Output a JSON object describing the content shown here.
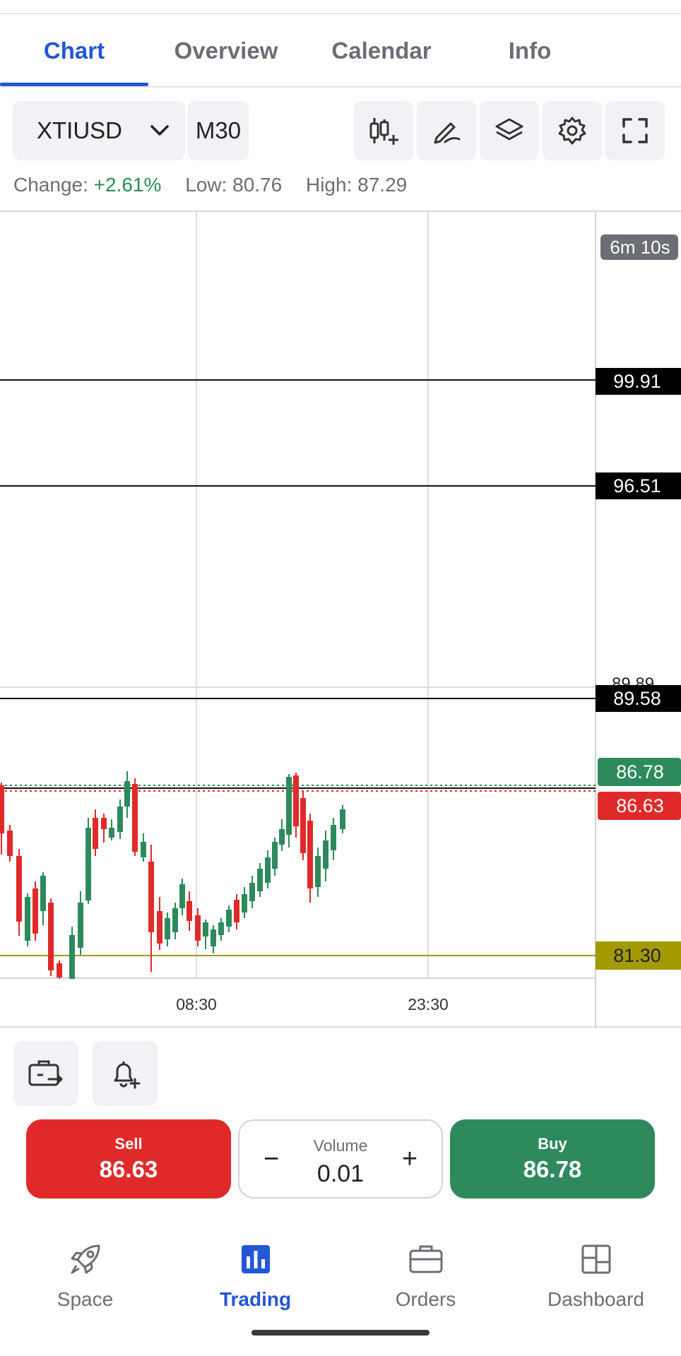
{
  "tabs": [
    {
      "label": "Chart",
      "active": true
    },
    {
      "label": "Overview",
      "active": false
    },
    {
      "label": "Calendar",
      "active": false
    },
    {
      "label": "Info",
      "active": false
    }
  ],
  "toolbar": {
    "symbol": "XTIUSD",
    "timeframe": "M30",
    "tools": [
      "indicators-icon",
      "draw-icon",
      "layers-icon",
      "settings-icon",
      "fullscreen-icon"
    ]
  },
  "stats": {
    "change_label": "Change:",
    "change_value": "+2.61%",
    "low_label": "Low:",
    "low_value": "80.76",
    "high_label": "High:",
    "high_value": "87.29"
  },
  "chart": {
    "timer": "6m 10s",
    "levels": [
      {
        "value": "99.91",
        "color": "#000000"
      },
      {
        "value": "96.51",
        "color": "#000000"
      },
      {
        "value": "89.58",
        "color": "#000000"
      },
      {
        "value": "86.78",
        "color": "#2e8a5c"
      },
      {
        "value": "86.63",
        "color": "#e02a2a"
      },
      {
        "value": "81.30",
        "color": "#a39a00"
      }
    ],
    "time_labels": [
      "08:30",
      "23:30"
    ]
  },
  "actions": {
    "sell_label": "Sell",
    "sell_price": "86.63",
    "volume_label": "Volume",
    "volume_value": "0.01",
    "minus": "−",
    "plus": "+",
    "buy_label": "Buy",
    "buy_price": "86.78"
  },
  "nav": [
    {
      "label": "Space",
      "icon": "rocket-icon",
      "active": false
    },
    {
      "label": "Trading",
      "icon": "chart-bars-icon",
      "active": true
    },
    {
      "label": "Orders",
      "icon": "briefcase-icon",
      "active": false
    },
    {
      "label": "Dashboard",
      "icon": "dashboard-icon",
      "active": false
    }
  ],
  "colors": {
    "accent": "#2456d6",
    "up": "#2e8a5c",
    "down": "#e02a2a",
    "level_olive": "#a39a00"
  }
}
